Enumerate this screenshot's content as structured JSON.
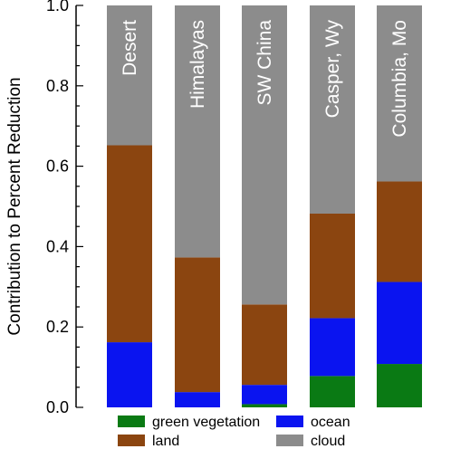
{
  "chart_data": {
    "type": "bar",
    "stacked": true,
    "categories": [
      "Desert",
      "Himalayas",
      "SW China",
      "Casper, Wy",
      "Columbia, Mo"
    ],
    "series": [
      {
        "name": "green vegetation",
        "color": "#0a7a14",
        "values": [
          0.0,
          0.0,
          0.008,
          0.078,
          0.108
        ]
      },
      {
        "name": "ocean",
        "color": "#0a14f0",
        "values": [
          0.162,
          0.038,
          0.048,
          0.144,
          0.204
        ]
      },
      {
        "name": "land",
        "color": "#8b4510",
        "values": [
          0.49,
          0.335,
          0.2,
          0.26,
          0.25
        ]
      },
      {
        "name": "cloud",
        "color": "#8c8c8c",
        "values": [
          0.348,
          0.627,
          0.744,
          0.518,
          0.438
        ]
      }
    ],
    "ylabel": "Contribution to Percent Reduction",
    "xlabel": "",
    "ylim": [
      0,
      1.0
    ],
    "yticks": [
      "0.0",
      "0.2",
      "0.4",
      "0.6",
      "0.8",
      "1.0"
    ],
    "legend_position": "bottom",
    "grid": false
  }
}
